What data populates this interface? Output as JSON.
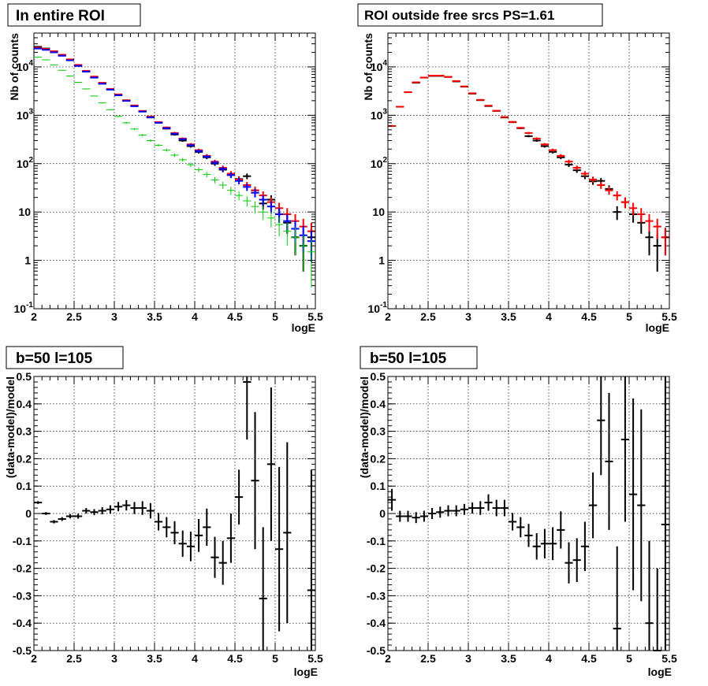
{
  "chart_data": [
    {
      "type": "scatter",
      "title": "In entire ROI",
      "xlabel": "logE",
      "ylabel": "Nb of counts",
      "xlim": [
        2,
        5.5
      ],
      "ylim": [
        0.1,
        50000
      ],
      "yscale": "log",
      "grid": true,
      "x_ticks": [
        "2",
        "2.5",
        "3",
        "3.5",
        "4",
        "4.5",
        "5",
        "5.5"
      ],
      "y_ticks": [
        {
          "base": "10",
          "exp": "-1"
        },
        {
          "base": "1",
          "exp": ""
        },
        {
          "base": "10",
          "exp": ""
        },
        {
          "base": "10",
          "exp": "2"
        },
        {
          "base": "10",
          "exp": "3"
        },
        {
          "base": "10",
          "exp": "4"
        }
      ],
      "series": [
        {
          "color": "#000000",
          "x": [
            2.05,
            2.15,
            2.25,
            2.35,
            2.45,
            2.55,
            2.65,
            2.75,
            2.85,
            2.95,
            3.05,
            3.15,
            3.25,
            3.35,
            3.45,
            3.55,
            3.65,
            3.75,
            3.85,
            3.95,
            4.05,
            4.15,
            4.25,
            4.35,
            4.45,
            4.55,
            4.65,
            4.75,
            4.85,
            4.95,
            5.05,
            5.15,
            5.25,
            5.35,
            5.45
          ],
          "y": [
            26000,
            24000,
            21000,
            17500,
            14000,
            10500,
            8000,
            6000,
            4500,
            3400,
            2600,
            2000,
            1550,
            1200,
            900,
            700,
            530,
            400,
            300,
            230,
            175,
            135,
            100,
            75,
            58,
            48,
            55,
            28,
            15,
            18,
            9,
            6,
            3,
            2,
            3
          ]
        },
        {
          "color": "#ff0000",
          "x": [
            2.05,
            2.15,
            2.25,
            2.35,
            2.45,
            2.55,
            2.65,
            2.75,
            2.85,
            2.95,
            3.05,
            3.15,
            3.25,
            3.35,
            3.45,
            3.55,
            3.65,
            3.75,
            3.85,
            3.95,
            4.05,
            4.15,
            4.25,
            4.35,
            4.45,
            4.55,
            4.65,
            4.75,
            4.85,
            4.95,
            5.05,
            5.15,
            5.25,
            5.35,
            5.45
          ],
          "y": [
            25000,
            23500,
            21000,
            17800,
            14300,
            11000,
            8300,
            6300,
            4700,
            3500,
            2700,
            2050,
            1600,
            1230,
            940,
            720,
            560,
            430,
            330,
            250,
            190,
            145,
            110,
            82,
            62,
            47,
            36,
            28,
            22,
            16,
            12,
            9,
            6.5,
            5,
            4
          ]
        },
        {
          "color": "#0000ff",
          "x": [
            2.05,
            2.15,
            2.25,
            2.35,
            2.45,
            2.55,
            2.65,
            2.75,
            2.85,
            2.95,
            3.05,
            3.15,
            3.25,
            3.35,
            3.45,
            3.55,
            3.65,
            3.75,
            3.85,
            3.95,
            4.05,
            4.15,
            4.25,
            4.35,
            4.45,
            4.55,
            4.65,
            4.75,
            4.85,
            4.95,
            5.05,
            5.15,
            5.25,
            5.35,
            5.45
          ],
          "y": [
            24000,
            22500,
            20000,
            17000,
            13700,
            10500,
            8000,
            6000,
            4500,
            3400,
            2600,
            1980,
            1540,
            1190,
            910,
            700,
            540,
            415,
            320,
            240,
            182,
            140,
            105,
            78,
            58,
            44,
            33,
            25,
            18,
            13,
            9,
            6.5,
            4.5,
            3.3,
            2.5
          ]
        },
        {
          "color": "#00cc00",
          "x": [
            2.05,
            2.15,
            2.25,
            2.35,
            2.45,
            2.55,
            2.65,
            2.75,
            2.85,
            2.95,
            3.05,
            3.15,
            3.25,
            3.35,
            3.45,
            3.55,
            3.65,
            3.75,
            3.85,
            3.95,
            4.05,
            4.15,
            4.25,
            4.35,
            4.45,
            4.55,
            4.65,
            4.75,
            4.85,
            4.95,
            5.05,
            5.15,
            5.25,
            5.35,
            5.45
          ],
          "y": [
            16000,
            14000,
            11000,
            8500,
            6500,
            4800,
            3500,
            2500,
            1800,
            1300,
            950,
            700,
            520,
            390,
            300,
            240,
            190,
            150,
            120,
            95,
            75,
            60,
            46,
            36,
            28,
            22,
            17,
            13,
            10,
            7.5,
            5.5,
            4,
            3,
            2,
            1.5
          ]
        }
      ]
    },
    {
      "type": "scatter",
      "title": "ROI outside free srcs PS=1.61",
      "xlabel": "logE",
      "ylabel": "Nb of counts",
      "xlim": [
        2,
        5.5
      ],
      "ylim": [
        0.1,
        50000
      ],
      "yscale": "log",
      "grid": true,
      "x_ticks": [
        "2",
        "2.5",
        "3",
        "3.5",
        "4",
        "4.5",
        "5",
        "5.5"
      ],
      "y_ticks": [
        {
          "base": "10",
          "exp": "-1"
        },
        {
          "base": "1",
          "exp": ""
        },
        {
          "base": "10",
          "exp": ""
        },
        {
          "base": "10",
          "exp": "2"
        },
        {
          "base": "10",
          "exp": "3"
        },
        {
          "base": "10",
          "exp": "4"
        }
      ],
      "series": [
        {
          "color": "#000000",
          "x": [
            2.05,
            2.15,
            2.25,
            2.35,
            2.45,
            2.55,
            2.65,
            2.75,
            2.85,
            2.95,
            3.05,
            3.15,
            3.25,
            3.35,
            3.45,
            3.55,
            3.65,
            3.75,
            3.85,
            3.95,
            4.05,
            4.15,
            4.25,
            4.35,
            4.45,
            4.55,
            4.65,
            4.75,
            4.85,
            4.95,
            5.05,
            5.15,
            5.25,
            5.35,
            5.45
          ],
          "y": [
            600,
            1500,
            3000,
            4700,
            6000,
            6500,
            6500,
            6200,
            5000,
            3900,
            2800,
            2050,
            1550,
            1230,
            900,
            720,
            540,
            370,
            300,
            230,
            175,
            135,
            95,
            73,
            55,
            43,
            44,
            30,
            10,
            16,
            9,
            6,
            3,
            2,
            3
          ]
        },
        {
          "color": "#ff0000",
          "x": [
            2.05,
            2.15,
            2.25,
            2.35,
            2.45,
            2.55,
            2.65,
            2.75,
            2.85,
            2.95,
            3.05,
            3.15,
            3.25,
            3.35,
            3.45,
            3.55,
            3.65,
            3.75,
            3.85,
            3.95,
            4.05,
            4.15,
            4.25,
            4.35,
            4.45,
            4.55,
            4.65,
            4.75,
            4.85,
            4.95,
            5.05,
            5.15,
            5.25,
            5.35,
            5.45
          ],
          "y": [
            600,
            1500,
            3000,
            4800,
            6000,
            6600,
            6600,
            6200,
            5100,
            3950,
            2850,
            2080,
            1580,
            1240,
            920,
            730,
            550,
            430,
            330,
            250,
            190,
            145,
            110,
            82,
            62,
            47,
            36,
            28,
            22,
            16,
            12,
            9,
            6.5,
            5,
            3
          ]
        }
      ]
    },
    {
      "type": "scatter",
      "title": "b=50 l=105",
      "xlabel": "logE",
      "ylabel": "(data-model)/model",
      "xlim": [
        2,
        5.5
      ],
      "ylim": [
        -0.5,
        0.5
      ],
      "grid": true,
      "x_ticks": [
        "2",
        "2.5",
        "3",
        "3.5",
        "4",
        "4.5",
        "5",
        "5.5"
      ],
      "y_ticks": [
        "-0.5",
        "-0.4",
        "-0.3",
        "-0.2",
        "-0.1",
        "0",
        "0.1",
        "0.2",
        "0.3",
        "0.4",
        "0.5"
      ],
      "series": [
        {
          "color": "#000000",
          "x": [
            2.05,
            2.15,
            2.25,
            2.35,
            2.45,
            2.55,
            2.65,
            2.75,
            2.85,
            2.95,
            3.05,
            3.15,
            3.25,
            3.35,
            3.45,
            3.55,
            3.65,
            3.75,
            3.85,
            3.95,
            4.05,
            4.15,
            4.25,
            4.35,
            4.45,
            4.55,
            4.65,
            4.75,
            4.85,
            4.95,
            5.05,
            5.15,
            5.45
          ],
          "y": [
            0.04,
            0.0,
            -0.03,
            -0.02,
            -0.01,
            -0.01,
            0.01,
            0.005,
            0.01,
            0.015,
            0.025,
            0.03,
            0.02,
            0.02,
            0.01,
            -0.03,
            -0.05,
            -0.07,
            -0.11,
            -0.12,
            -0.08,
            -0.05,
            -0.16,
            -0.18,
            -0.09,
            0.06,
            0.48,
            0.12,
            -0.31,
            0.18,
            -0.13,
            -0.07,
            -0.28
          ],
          "err": [
            0.005,
            0.005,
            0.006,
            0.007,
            0.008,
            0.009,
            0.01,
            0.011,
            0.013,
            0.015,
            0.017,
            0.019,
            0.022,
            0.025,
            0.028,
            0.032,
            0.037,
            0.042,
            0.048,
            0.054,
            0.06,
            0.068,
            0.075,
            0.08,
            0.09,
            0.1,
            0.21,
            0.25,
            0.26,
            0.28,
            0.3,
            0.33,
            0.44
          ]
        }
      ]
    },
    {
      "type": "scatter",
      "title": "b=50 l=105",
      "xlabel": "logE",
      "ylabel": "(data-model)/model",
      "xlim": [
        2,
        5.5
      ],
      "ylim": [
        -0.5,
        0.5
      ],
      "grid": true,
      "x_ticks": [
        "2",
        "2.5",
        "3",
        "3.5",
        "4",
        "4.5",
        "5",
        "5.5"
      ],
      "y_ticks": [
        "-0.5",
        "-0.4",
        "-0.3",
        "-0.2",
        "-0.1",
        "0",
        "0.1",
        "0.2",
        "0.3",
        "0.4",
        "0.5"
      ],
      "series": [
        {
          "color": "#000000",
          "x": [
            2.05,
            2.15,
            2.25,
            2.35,
            2.45,
            2.55,
            2.65,
            2.75,
            2.85,
            2.95,
            3.05,
            3.15,
            3.25,
            3.35,
            3.45,
            3.55,
            3.65,
            3.75,
            3.85,
            3.95,
            4.05,
            4.15,
            4.25,
            4.35,
            4.45,
            4.55,
            4.65,
            4.75,
            4.85,
            4.95,
            5.05,
            5.15,
            5.25,
            5.35,
            5.45
          ],
          "y": [
            0.05,
            -0.01,
            -0.01,
            -0.015,
            -0.01,
            0.0,
            0.005,
            0.01,
            0.01,
            0.015,
            0.02,
            0.02,
            0.04,
            0.02,
            0.02,
            -0.03,
            -0.05,
            -0.08,
            -0.12,
            -0.11,
            -0.11,
            -0.06,
            -0.18,
            -0.17,
            -0.12,
            0.03,
            0.34,
            0.19,
            -0.42,
            0.27,
            0.07,
            0.03,
            -0.4,
            -0.5,
            -0.04
          ],
          "err": [
            0.04,
            0.02,
            0.02,
            0.02,
            0.02,
            0.02,
            0.02,
            0.02,
            0.02,
            0.02,
            0.02,
            0.025,
            0.03,
            0.03,
            0.03,
            0.032,
            0.037,
            0.042,
            0.048,
            0.054,
            0.06,
            0.068,
            0.075,
            0.08,
            0.09,
            0.12,
            0.2,
            0.25,
            0.3,
            0.3,
            0.35,
            0.35,
            0.3,
            0.3,
            0.54
          ]
        }
      ]
    }
  ]
}
